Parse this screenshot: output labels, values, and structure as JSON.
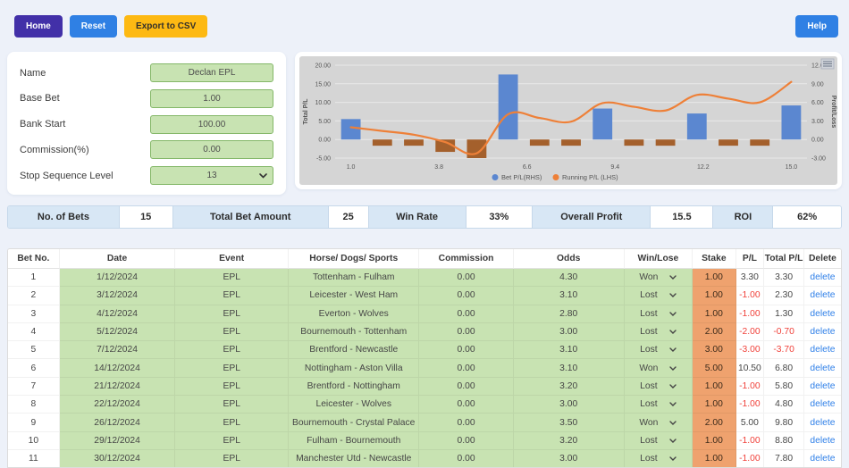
{
  "toolbar": {
    "home_label": "Home",
    "reset_label": "Reset",
    "export_label": "Export to CSV",
    "help_label": "Help"
  },
  "settings": {
    "fields": [
      {
        "label": "Name",
        "value": "Declan EPL",
        "type": "input"
      },
      {
        "label": "Base Bet",
        "value": "1.00",
        "type": "input"
      },
      {
        "label": "Bank Start",
        "value": "100.00",
        "type": "input"
      },
      {
        "label": "Commission(%)",
        "value": "0.00",
        "type": "input"
      },
      {
        "label": "Stop Sequence Level",
        "value": "13",
        "type": "select"
      }
    ]
  },
  "chart_data": {
    "type": "bar+line combo",
    "plot_bg": "#d5d5d5",
    "grid_color": "#e9e9e9",
    "x": [
      1,
      2,
      3,
      4,
      5,
      6,
      7,
      8,
      9,
      10,
      11,
      12,
      13,
      14,
      15
    ],
    "series": [
      {
        "name": "Bet P/L(RHS)",
        "type": "bar",
        "axis": "right",
        "color": "#5b87d0",
        "negative_color": "#a4602c",
        "values": [
          3.3,
          -1,
          -1,
          -2,
          -3,
          10.5,
          -1,
          -1,
          5,
          -1,
          -1,
          4.2,
          -1,
          -1,
          5.5
        ]
      },
      {
        "name": "Running P/L (LHS)",
        "type": "line",
        "axis": "left",
        "color": "#ee8038",
        "values": [
          3.3,
          2.3,
          1.3,
          -0.7,
          -3.7,
          6.8,
          5.8,
          4.8,
          9.8,
          8.8,
          7.8,
          12,
          11,
          10,
          15.5
        ]
      }
    ],
    "left_axis": {
      "title": "Total P/L",
      "min": -5,
      "max": 20,
      "ticks": [
        20,
        15,
        10,
        5,
        0,
        -5
      ]
    },
    "right_axis": {
      "title": "Profit/Loss",
      "min": -3,
      "max": 12,
      "ticks": [
        12,
        9,
        6,
        3,
        0,
        -3
      ]
    },
    "x_ticks": [
      "1.0",
      "3.8",
      "6.6",
      "9.4",
      "12.2",
      "15.0"
    ],
    "legend_position": "bottom-center"
  },
  "stats": [
    {
      "label": "No. of Bets",
      "value": "15"
    },
    {
      "label": "Total Bet Amount",
      "value": "25"
    },
    {
      "label": "Win Rate",
      "value": "33%"
    },
    {
      "label": "Overall Profit",
      "value": "15.5"
    },
    {
      "label": "ROI",
      "value": "62%"
    }
  ],
  "table": {
    "headers": [
      "Bet No.",
      "Date",
      "Event",
      "Horse/ Dogs/ Sports",
      "Commission",
      "Odds",
      "Win/Lose",
      "Stake",
      "P/L",
      "Total P/L",
      "Delete"
    ],
    "delete_label": "delete",
    "rows": [
      {
        "bet_no": "1",
        "date": "1/12/2024",
        "event": "EPL",
        "fixture": "Tottenham - Fulham",
        "commission": "0.00",
        "odds": "4.30",
        "result": "Won",
        "stake": "1.00",
        "pl": "3.30",
        "total_pl": "3.30"
      },
      {
        "bet_no": "2",
        "date": "3/12/2024",
        "event": "EPL",
        "fixture": "Leicester - West Ham",
        "commission": "0.00",
        "odds": "3.10",
        "result": "Lost",
        "stake": "1.00",
        "pl": "-1.00",
        "total_pl": "2.30"
      },
      {
        "bet_no": "3",
        "date": "4/12/2024",
        "event": "EPL",
        "fixture": "Everton - Wolves",
        "commission": "0.00",
        "odds": "2.80",
        "result": "Lost",
        "stake": "1.00",
        "pl": "-1.00",
        "total_pl": "1.30"
      },
      {
        "bet_no": "4",
        "date": "5/12/2024",
        "event": "EPL",
        "fixture": "Bournemouth - Tottenham",
        "commission": "0.00",
        "odds": "3.00",
        "result": "Lost",
        "stake": "2.00",
        "pl": "-2.00",
        "total_pl": "-0.70"
      },
      {
        "bet_no": "5",
        "date": "7/12/2024",
        "event": "EPL",
        "fixture": "Brentford - Newcastle",
        "commission": "0.00",
        "odds": "3.10",
        "result": "Lost",
        "stake": "3.00",
        "pl": "-3.00",
        "total_pl": "-3.70"
      },
      {
        "bet_no": "6",
        "date": "14/12/2024",
        "event": "EPL",
        "fixture": "Nottingham - Aston Villa",
        "commission": "0.00",
        "odds": "3.10",
        "result": "Won",
        "stake": "5.00",
        "pl": "10.50",
        "total_pl": "6.80"
      },
      {
        "bet_no": "7",
        "date": "21/12/2024",
        "event": "EPL",
        "fixture": "Brentford - Nottingham",
        "commission": "0.00",
        "odds": "3.20",
        "result": "Lost",
        "stake": "1.00",
        "pl": "-1.00",
        "total_pl": "5.80"
      },
      {
        "bet_no": "8",
        "date": "22/12/2024",
        "event": "EPL",
        "fixture": "Leicester - Wolves",
        "commission": "0.00",
        "odds": "3.00",
        "result": "Lost",
        "stake": "1.00",
        "pl": "-1.00",
        "total_pl": "4.80"
      },
      {
        "bet_no": "9",
        "date": "26/12/2024",
        "event": "EPL",
        "fixture": "Bournemouth - Crystal Palace",
        "commission": "0.00",
        "odds": "3.50",
        "result": "Won",
        "stake": "2.00",
        "pl": "5.00",
        "total_pl": "9.80"
      },
      {
        "bet_no": "10",
        "date": "29/12/2024",
        "event": "EPL",
        "fixture": "Fulham - Bournemouth",
        "commission": "0.00",
        "odds": "3.20",
        "result": "Lost",
        "stake": "1.00",
        "pl": "-1.00",
        "total_pl": "8.80"
      },
      {
        "bet_no": "11",
        "date": "30/12/2024",
        "event": "EPL",
        "fixture": "Manchester Utd - Newcastle",
        "commission": "0.00",
        "odds": "3.00",
        "result": "Lost",
        "stake": "1.00",
        "pl": "-1.00",
        "total_pl": "7.80"
      }
    ]
  },
  "colors": {
    "accent_purple": "#4230a8",
    "accent_blue": "#2f80e4",
    "accent_amber": "#fdb913",
    "cell_green": "#c8e3b2",
    "cell_orange": "#efa26e",
    "stat_label_blue": "#d8e7f5",
    "negative_red": "#f0423b",
    "link_blue": "#2e7fe8"
  }
}
